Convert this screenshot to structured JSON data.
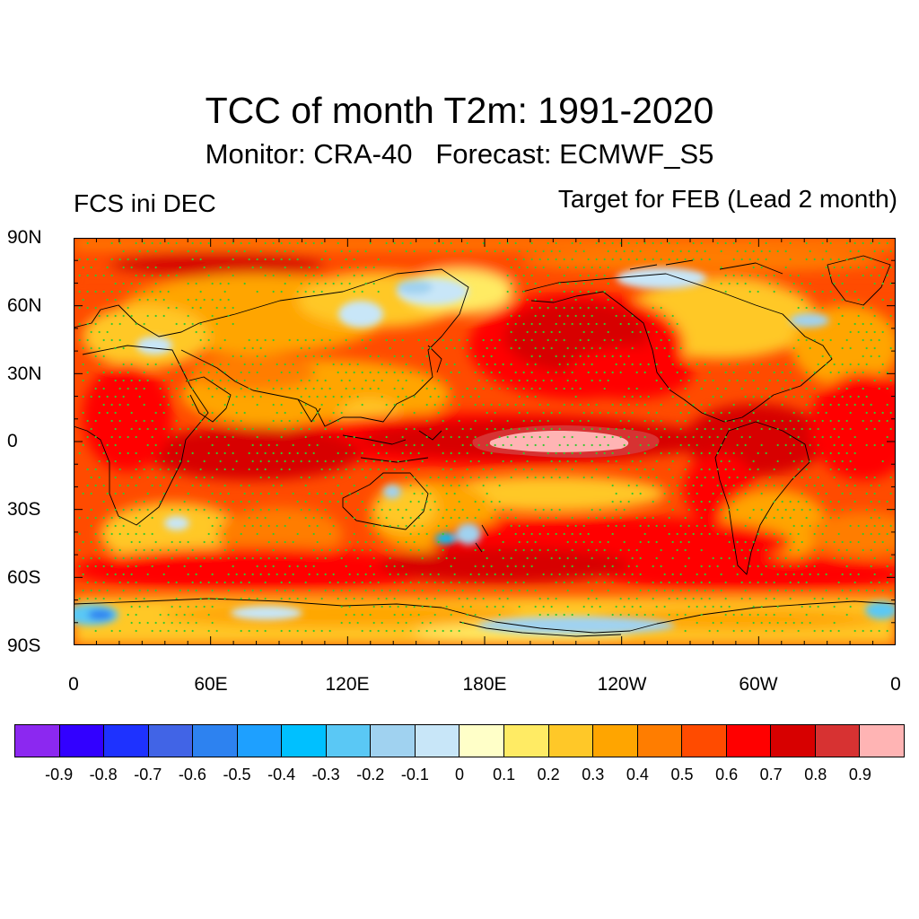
{
  "title": "TCC of month T2m: 1991-2020",
  "subtitle": "Monitor: CRA-40   Forecast: ECMWF_S5",
  "left_label": "FCS ini DEC",
  "right_label": "Target for FEB (Lead 2 month)",
  "lat_labels": [
    "90N",
    "60N",
    "30N",
    "0",
    "30S",
    "60S",
    "90S"
  ],
  "lon_labels": [
    "0",
    "60E",
    "120E",
    "180E",
    "120W",
    "60W",
    "0"
  ],
  "colorbar": {
    "colors": [
      "#8c28f0",
      "#3200ff",
      "#1e32ff",
      "#4164e6",
      "#2d82f0",
      "#1ea0ff",
      "#00c0ff",
      "#5ac8f5",
      "#a0d2f0",
      "#c8e6f8",
      "#ffffc8",
      "#ffeb64",
      "#ffc828",
      "#ffa500",
      "#ff7d00",
      "#ff4b00",
      "#ff0000",
      "#d70000",
      "#d73232",
      "#ffb4b4"
    ],
    "labels": [
      "-0.9",
      "-0.8",
      "-0.7",
      "-0.6",
      "-0.5",
      "-0.4",
      "-0.3",
      "-0.2",
      "-0.1",
      "0",
      "0.1",
      "0.2",
      "0.3",
      "0.4",
      "0.5",
      "0.6",
      "0.7",
      "0.8",
      "0.9"
    ]
  },
  "stipple_color": "#32c832",
  "ocean_base_color": "#ff4b00"
}
